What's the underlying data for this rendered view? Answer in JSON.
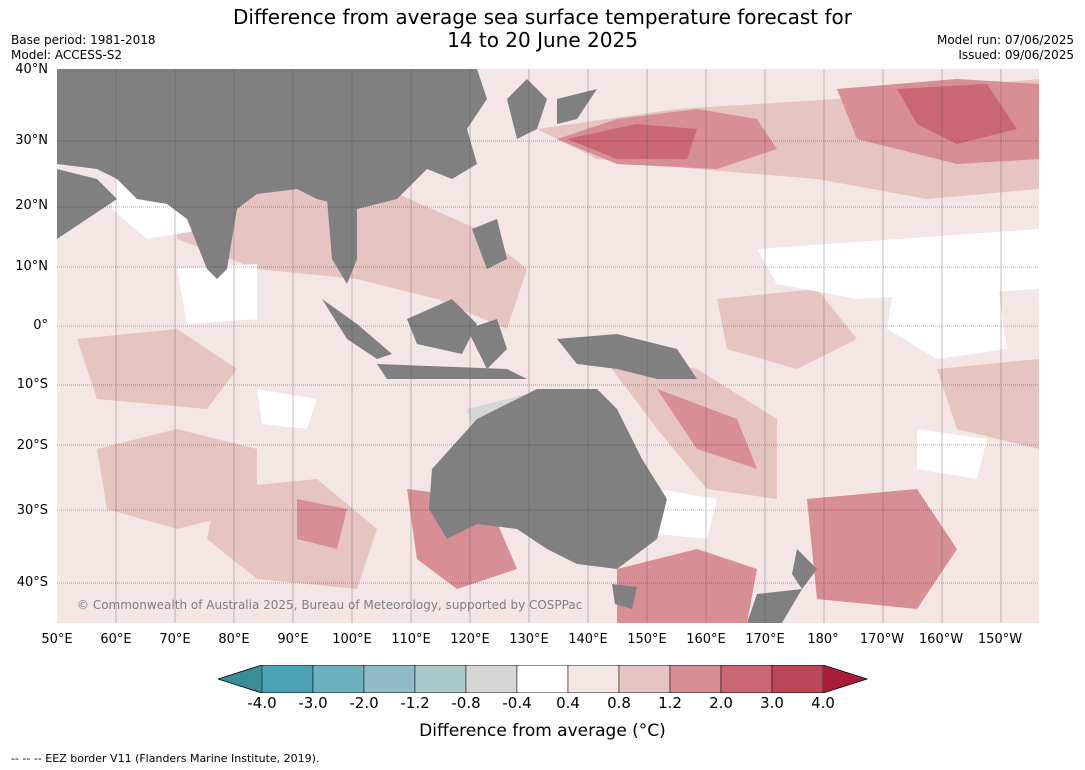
{
  "title": {
    "line1": "Difference from average sea surface temperature forecast for",
    "line2": "14 to 20 June 2025"
  },
  "meta_left": {
    "base_period": "Base period: 1981-2018",
    "model": "Model: ACCESS-S2"
  },
  "meta_right": {
    "model_run": "Model run: 07/06/2025",
    "issued": "Issued: 09/06/2025"
  },
  "lat_labels": [
    "40°N",
    "30°N",
    "20°N",
    "10°N",
    "0°",
    "10°S",
    "20°S",
    "30°S",
    "40°S"
  ],
  "lon_labels": [
    "50°E",
    "60°E",
    "70°E",
    "80°E",
    "90°E",
    "100°E",
    "110°E",
    "120°E",
    "130°E",
    "140°E",
    "150°E",
    "160°E",
    "170°E",
    "180°",
    "170°W",
    "160°W",
    "150°W"
  ],
  "copyright": "© Commonwealth of Australia 2025, Bureau of Meteorology, supported by COSPPac",
  "colorbar": {
    "ticks": [
      "-4.0",
      "-3.0",
      "-2.0",
      "-1.2",
      "-0.8",
      "-0.4",
      "0.4",
      "0.8",
      "1.2",
      "2.0",
      "3.0",
      "4.0"
    ],
    "colors": [
      "#3a8c97",
      "#4aa2b3",
      "#6db0be",
      "#8ebbc6",
      "#a9c8cc",
      "#d6d6d6",
      "#ffffff",
      "#f3e6e5",
      "#e6c4c1",
      "#d78e95",
      "#c96772",
      "#bb4656",
      "#a81d38"
    ],
    "label": "Difference from average (°C)"
  },
  "land_color": "#808080",
  "footer": "--  --  -- EEZ border V11 (Flanders Marine Institute, 2019)."
}
